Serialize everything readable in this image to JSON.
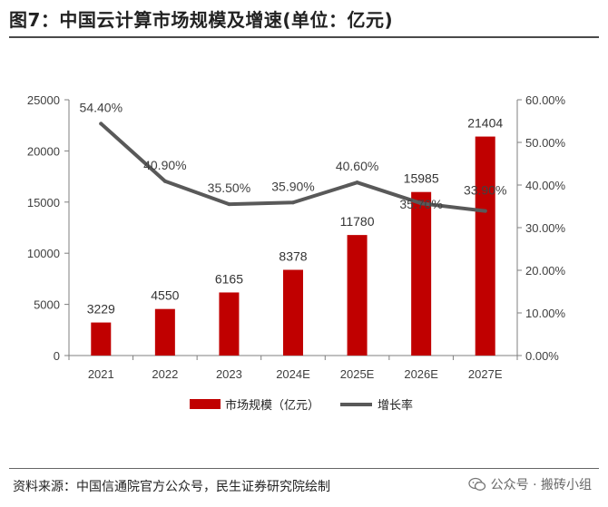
{
  "header": {
    "title": "图7：中国云计算市场规模及增速(单位：亿元)"
  },
  "footer": {
    "source": "资料来源：中国信通院官方公众号，民生证券研究院绘制",
    "watermark": "公众号 · 搬砖小组"
  },
  "colors": {
    "bar": "#c00000",
    "line": "#595959",
    "axis": "#7f7f7f",
    "text": "#404040"
  },
  "chart_data": {
    "type": "bar+line",
    "categories": [
      "2021",
      "2022",
      "2023",
      "2024E",
      "2025E",
      "2026E",
      "2027E"
    ],
    "series": [
      {
        "name": "市场规模（亿元）",
        "type": "bar",
        "axis": "left",
        "values": [
          3229,
          4550,
          6165,
          8378,
          11780,
          15985,
          21404
        ],
        "labels": [
          "3229",
          "4550",
          "6165",
          "8378",
          "11780",
          "15985",
          "21404"
        ]
      },
      {
        "name": "增长率",
        "type": "line",
        "axis": "right",
        "values": [
          54.4,
          40.9,
          35.5,
          35.9,
          40.6,
          35.7,
          33.9
        ],
        "labels": [
          "54.40%",
          "40.90%",
          "35.50%",
          "35.90%",
          "40.60%",
          "35.70%",
          "33.90%"
        ]
      }
    ],
    "y_left": {
      "ylim": [
        0,
        25000
      ],
      "ticks": [
        0,
        5000,
        10000,
        15000,
        20000,
        25000
      ],
      "tick_labels": [
        "0",
        "5000",
        "10000",
        "15000",
        "20000",
        "25000"
      ]
    },
    "y_right": {
      "ylim": [
        0,
        60
      ],
      "ticks": [
        0,
        10,
        20,
        30,
        40,
        50,
        60
      ],
      "tick_labels": [
        "0.00%",
        "10.00%",
        "20.00%",
        "30.00%",
        "40.00%",
        "50.00%",
        "60.00%"
      ]
    },
    "legend": {
      "position": "bottom-center",
      "entries": [
        "市场规模（亿元）",
        "增长率"
      ]
    },
    "grid": false
  }
}
